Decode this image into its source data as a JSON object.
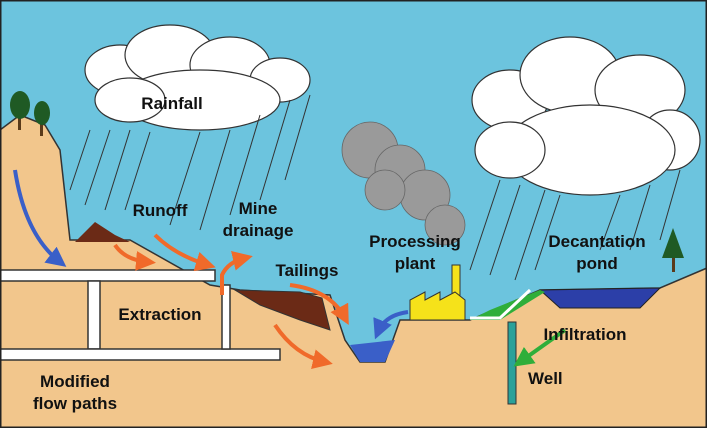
{
  "labels": {
    "rainfall": [
      "Rainfall"
    ],
    "runoff": [
      "Runoff"
    ],
    "mine_drainage": [
      "Mine",
      "drainage"
    ],
    "tailings": [
      "Tailings"
    ],
    "processing_plant": [
      "Processing",
      "plant"
    ],
    "decantation_pond": [
      "Decantation",
      "pond"
    ],
    "extraction": [
      "Extraction"
    ],
    "infiltration": [
      "Infiltration"
    ],
    "well": [
      "Well"
    ],
    "modified_flow_paths": [
      "Modified",
      "flow paths"
    ]
  }
}
